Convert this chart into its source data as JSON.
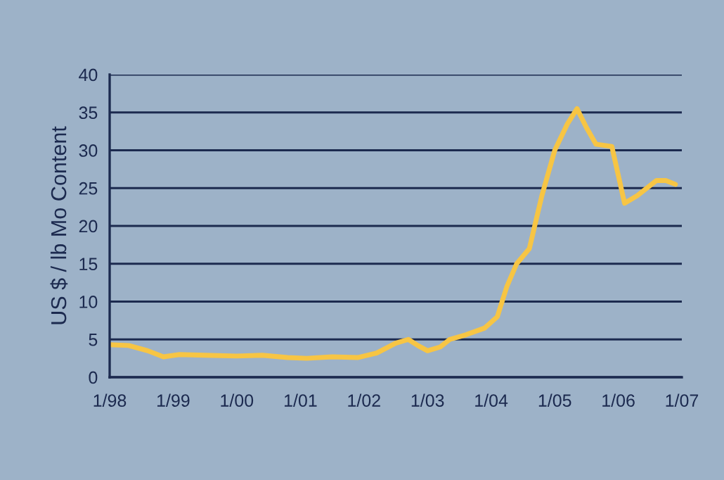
{
  "chart_data": {
    "type": "line",
    "ylabel": "US $ / lb Mo Content",
    "x": [
      "1998-01-01",
      "1998-04-20",
      "1998-08-08",
      "1998-11-06",
      "1999-02-06",
      "1999-07-02",
      "2000-01-01",
      "2000-05-27",
      "2000-10-19",
      "2001-02-06",
      "2001-07-02",
      "2001-11-25",
      "2002-03-15",
      "2002-07-02",
      "2002-09-13",
      "2002-11-06",
      "2003-01-01",
      "2003-03-15",
      "2003-05-09",
      "2003-08-08",
      "2003-11-25",
      "2004-02-06",
      "2004-04-01",
      "2004-05-27",
      "2004-08-08",
      "2004-10-19",
      "2005-01-01",
      "2005-03-15",
      "2005-05-09",
      "2005-07-02",
      "2005-08-26",
      "2005-11-25",
      "2006-02-06",
      "2006-04-20",
      "2006-08-08",
      "2006-10-01",
      "2006-11-25"
    ],
    "series": [
      {
        "color": "#f7c544",
        "values": [
          4.3,
          4.2,
          3.5,
          2.7,
          3.0,
          2.9,
          2.8,
          2.9,
          2.6,
          2.5,
          2.7,
          2.6,
          3.2,
          4.5,
          5.0,
          4.2,
          3.5,
          4.0,
          5.0,
          5.6,
          6.5,
          8.0,
          12,
          15,
          17,
          24,
          30,
          33.5,
          35.5,
          33,
          30.8,
          30.5,
          23,
          24,
          26,
          26,
          25.5
        ]
      }
    ],
    "xlim": [
      "1998-01-01",
      "2007-01-01"
    ],
    "xticks": [
      {
        "value": "1998-01",
        "label": "1/98"
      },
      {
        "value": "1999-01",
        "label": "1/99"
      },
      {
        "value": "2000-01",
        "label": "1/00"
      },
      {
        "value": "2001-01",
        "label": "1/01"
      },
      {
        "value": "2002-01",
        "label": "1/02"
      },
      {
        "value": "2003-01",
        "label": "1/03"
      },
      {
        "value": "2004-01",
        "label": "1/04"
      },
      {
        "value": "2005-01",
        "label": "1/05"
      },
      {
        "value": "2006-01",
        "label": "1/06"
      },
      {
        "value": "2007-01",
        "label": "1/07"
      }
    ],
    "ylim": [
      0,
      40
    ],
    "yticks": [
      0,
      5,
      10,
      15,
      20,
      25,
      30,
      35,
      40
    ],
    "grid": "y",
    "marker": "none",
    "line_style": "solid"
  }
}
